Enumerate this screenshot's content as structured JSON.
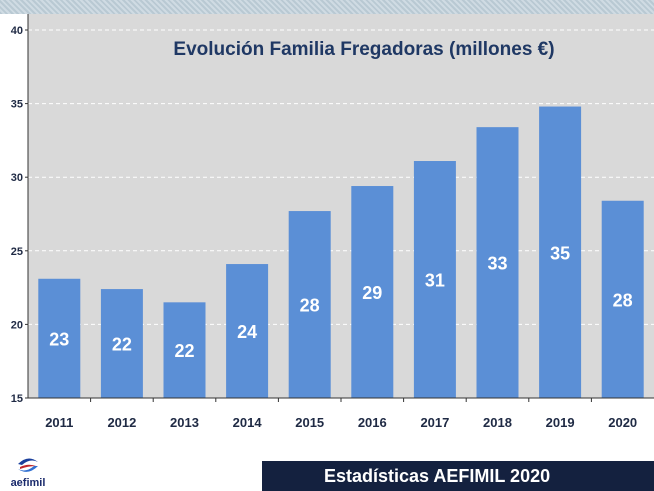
{
  "colors": {
    "plot_background": "#d9d9d9",
    "bar": "#5b8fd6",
    "title": "#1f3864",
    "gridline": "#ffffff",
    "axis_text": "#1f2a44",
    "data_label": "#ffffff",
    "footer_banner": "#14213f"
  },
  "chart_data": {
    "type": "bar",
    "title": "Evolución Familia Fregadoras (millones €)",
    "xlabel": "",
    "ylabel": "",
    "categories": [
      "2011",
      "2012",
      "2013",
      "2014",
      "2015",
      "2016",
      "2017",
      "2018",
      "2019",
      "2020"
    ],
    "values": [
      23.1,
      22.4,
      21.5,
      24.1,
      27.7,
      29.4,
      31.1,
      33.4,
      34.8,
      28.4
    ],
    "data_labels": [
      "23",
      "22",
      "22",
      "24",
      "28",
      "29",
      "31",
      "33",
      "35",
      "28"
    ],
    "ylim": [
      15,
      40
    ],
    "yticks": [
      "15",
      "20",
      "25",
      "30",
      "35",
      "40"
    ],
    "grid": true,
    "legend": "none"
  },
  "footer": {
    "logo_text": "aefimil",
    "banner_text": "Estadísticas AEFIMIL 2020"
  }
}
